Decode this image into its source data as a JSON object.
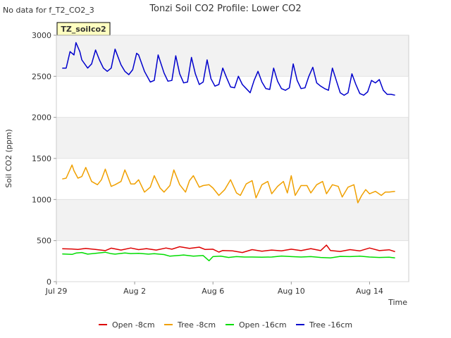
{
  "chart_data": {
    "type": "line",
    "title": "Tonzi Soil CO2 Profile: Lower CO2",
    "no_data_note": "No data for f_T2_CO2_3",
    "site_label": "TZ_soilco2",
    "xlabel": "Time",
    "ylabel": "Soil CO2 (ppm)",
    "xlim": [
      0,
      18
    ],
    "ylim": [
      0,
      3000
    ],
    "x_ticks": [
      {
        "value": 0,
        "label": "Jul 29"
      },
      {
        "value": 4,
        "label": "Aug 2"
      },
      {
        "value": 8,
        "label": "Aug 6"
      },
      {
        "value": 12,
        "label": "Aug 10"
      },
      {
        "value": 16,
        "label": "Aug 14"
      }
    ],
    "y_ticks": [
      0,
      500,
      1000,
      1500,
      2000,
      2500,
      3000
    ],
    "x_unit": "days since Jul 29",
    "series": [
      {
        "name": "Open -8cm",
        "color": "#dd0000",
        "x": [
          0.3,
          0.8,
          1.1,
          1.5,
          2.0,
          2.5,
          2.8,
          3.3,
          3.8,
          4.2,
          4.6,
          5.1,
          5.6,
          5.9,
          6.3,
          6.8,
          7.3,
          7.6,
          8.0,
          8.3,
          8.5,
          9.0,
          9.5,
          10.0,
          10.5,
          11.0,
          11.5,
          12.0,
          12.5,
          13.0,
          13.5,
          13.8,
          14.0,
          14.5,
          15.0,
          15.5,
          16.0,
          16.5,
          17.0,
          17.3
        ],
        "values": [
          400,
          398,
          392,
          405,
          392,
          378,
          408,
          385,
          410,
          390,
          402,
          385,
          410,
          395,
          425,
          405,
          420,
          392,
          395,
          360,
          380,
          375,
          355,
          390,
          370,
          385,
          375,
          395,
          378,
          402,
          378,
          445,
          380,
          368,
          390,
          375,
          410,
          378,
          388,
          365
        ]
      },
      {
        "name": "Tree -8cm",
        "color": "#f0a000",
        "x": [
          0.3,
          0.5,
          0.8,
          0.9,
          1.1,
          1.3,
          1.5,
          1.8,
          2.1,
          2.3,
          2.5,
          2.8,
          3.0,
          3.3,
          3.5,
          3.8,
          4.0,
          4.2,
          4.5,
          4.8,
          5.0,
          5.3,
          5.5,
          5.8,
          6.0,
          6.3,
          6.6,
          6.8,
          7.0,
          7.3,
          7.5,
          7.8,
          8.0,
          8.3,
          8.6,
          8.9,
          9.2,
          9.4,
          9.7,
          10.0,
          10.2,
          10.5,
          10.8,
          11.0,
          11.3,
          11.6,
          11.8,
          12.0,
          12.2,
          12.5,
          12.8,
          13.0,
          13.3,
          13.6,
          13.8,
          14.1,
          14.4,
          14.6,
          14.9,
          15.2,
          15.4,
          15.6,
          15.8,
          16.0,
          16.3,
          16.6,
          16.8,
          17.0,
          17.3
        ],
        "values": [
          1250,
          1260,
          1420,
          1350,
          1260,
          1280,
          1390,
          1220,
          1180,
          1240,
          1370,
          1160,
          1180,
          1220,
          1360,
          1190,
          1190,
          1240,
          1090,
          1150,
          1290,
          1140,
          1090,
          1170,
          1360,
          1180,
          1090,
          1230,
          1290,
          1150,
          1170,
          1180,
          1140,
          1050,
          1120,
          1240,
          1080,
          1050,
          1190,
          1230,
          1020,
          1180,
          1220,
          1070,
          1160,
          1220,
          1080,
          1290,
          1050,
          1170,
          1170,
          1080,
          1180,
          1220,
          1070,
          1180,
          1160,
          1030,
          1150,
          1180,
          960,
          1050,
          1120,
          1070,
          1100,
          1050,
          1090,
          1090,
          1100
        ]
      },
      {
        "name": "Open -16cm",
        "color": "#00dd00",
        "x": [
          0.3,
          0.8,
          1.0,
          1.3,
          1.6,
          2.0,
          2.5,
          2.8,
          3.0,
          3.5,
          3.8,
          4.2,
          4.7,
          5.0,
          5.5,
          5.8,
          6.2,
          6.5,
          7.0,
          7.5,
          7.8,
          8.0,
          8.4,
          8.8,
          9.2,
          9.6,
          10.0,
          10.5,
          11.0,
          11.5,
          12.0,
          12.5,
          13.0,
          13.5,
          14.0,
          14.5,
          15.0,
          15.5,
          16.0,
          16.5,
          17.0,
          17.3
        ],
        "values": [
          338,
          332,
          348,
          355,
          335,
          345,
          358,
          340,
          335,
          350,
          342,
          345,
          335,
          340,
          330,
          310,
          318,
          325,
          310,
          318,
          255,
          305,
          310,
          295,
          305,
          300,
          300,
          298,
          300,
          312,
          305,
          300,
          305,
          295,
          290,
          308,
          305,
          310,
          300,
          295,
          298,
          290
        ]
      },
      {
        "name": "Tree -16cm",
        "color": "#0000cc",
        "x": [
          0.3,
          0.5,
          0.7,
          0.9,
          1.0,
          1.2,
          1.3,
          1.6,
          1.8,
          2.0,
          2.2,
          2.4,
          2.6,
          2.8,
          3.0,
          3.3,
          3.5,
          3.7,
          3.9,
          4.1,
          4.2,
          4.5,
          4.8,
          5.0,
          5.2,
          5.5,
          5.7,
          5.9,
          6.1,
          6.3,
          6.5,
          6.7,
          6.9,
          7.1,
          7.3,
          7.5,
          7.7,
          7.9,
          8.1,
          8.3,
          8.5,
          8.7,
          8.9,
          9.1,
          9.3,
          9.5,
          9.7,
          9.9,
          10.1,
          10.3,
          10.5,
          10.7,
          10.9,
          11.1,
          11.3,
          11.5,
          11.7,
          11.9,
          12.1,
          12.3,
          12.5,
          12.7,
          12.9,
          13.1,
          13.3,
          13.5,
          13.7,
          13.9,
          14.1,
          14.3,
          14.5,
          14.7,
          14.9,
          15.1,
          15.3,
          15.5,
          15.7,
          15.9,
          16.1,
          16.3,
          16.5,
          16.7,
          16.9,
          17.1,
          17.3
        ],
        "values": [
          2600,
          2600,
          2800,
          2760,
          2910,
          2800,
          2700,
          2600,
          2650,
          2820,
          2700,
          2600,
          2560,
          2600,
          2830,
          2640,
          2560,
          2520,
          2580,
          2780,
          2760,
          2560,
          2430,
          2450,
          2760,
          2540,
          2440,
          2450,
          2750,
          2530,
          2420,
          2430,
          2730,
          2530,
          2400,
          2430,
          2700,
          2470,
          2380,
          2400,
          2600,
          2480,
          2370,
          2360,
          2500,
          2400,
          2350,
          2300,
          2450,
          2560,
          2430,
          2350,
          2340,
          2600,
          2440,
          2350,
          2330,
          2360,
          2650,
          2450,
          2350,
          2360,
          2500,
          2610,
          2420,
          2380,
          2350,
          2330,
          2600,
          2450,
          2300,
          2270,
          2300,
          2530,
          2400,
          2290,
          2270,
          2310,
          2450,
          2420,
          2460,
          2330,
          2280,
          2280,
          2270
        ]
      }
    ]
  }
}
